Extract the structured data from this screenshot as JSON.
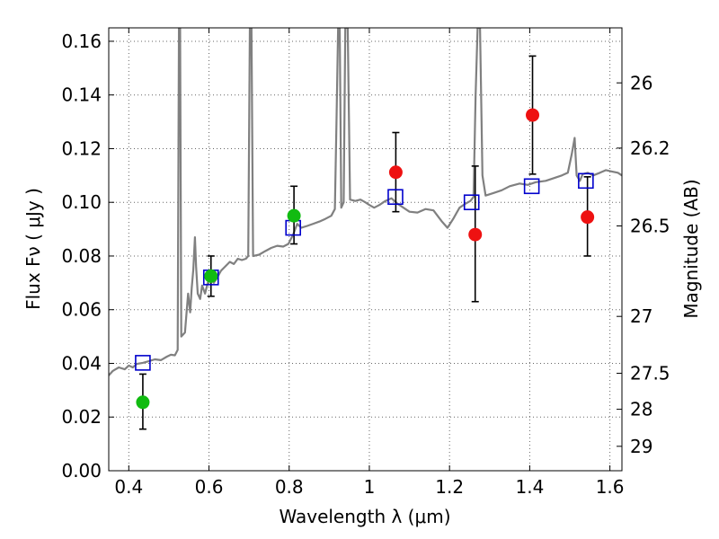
{
  "chart_data": {
    "type": "scatter",
    "xlabel": "Wavelength  λ (μm)",
    "ylabel": "Flux  Fν  ( μJy )",
    "ylabel_right": "Magnitude (AB)",
    "xlim": [
      0.35,
      1.63
    ],
    "ylim": [
      0.0,
      0.165
    ],
    "grid": true,
    "x_ticks": [
      {
        "value": 0.4,
        "label": "0.4"
      },
      {
        "value": 0.6,
        "label": "0.6"
      },
      {
        "value": 0.8,
        "label": "0.8"
      },
      {
        "value": 1.0,
        "label": "1"
      },
      {
        "value": 1.2,
        "label": "1.2"
      },
      {
        "value": 1.4,
        "label": "1.4"
      },
      {
        "value": 1.6,
        "label": "1.6"
      }
    ],
    "y_ticks": [
      {
        "value": 0.0,
        "label": "0.00"
      },
      {
        "value": 0.02,
        "label": "0.02"
      },
      {
        "value": 0.04,
        "label": "0.04"
      },
      {
        "value": 0.06,
        "label": "0.06"
      },
      {
        "value": 0.08,
        "label": "0.08"
      },
      {
        "value": 0.1,
        "label": "0.10"
      },
      {
        "value": 0.12,
        "label": "0.12"
      },
      {
        "value": 0.14,
        "label": "0.14"
      },
      {
        "value": 0.16,
        "label": "0.16"
      }
    ],
    "right_ticks": [
      {
        "label": "26",
        "flux": 0.1445
      },
      {
        "label": "26.2",
        "flux": 0.1202
      },
      {
        "label": "26.5",
        "flux": 0.0912
      },
      {
        "label": "27",
        "flux": 0.0575
      },
      {
        "label": "27.5",
        "flux": 0.0363
      },
      {
        "label": "28",
        "flux": 0.0229
      },
      {
        "label": "29",
        "flux": 0.0091
      }
    ],
    "colors": {
      "model": "#808080",
      "green": "#11bb11",
      "red": "#ee1111",
      "model_box": "#0000cc",
      "errorbar": "#000000",
      "grid": "#666666"
    },
    "series": [
      {
        "kind": "model_spectrum",
        "style": "line",
        "color": "#808080",
        "points": [
          [
            0.35,
            0.0355
          ],
          [
            0.36,
            0.0372
          ],
          [
            0.375,
            0.0385
          ],
          [
            0.39,
            0.0378
          ],
          [
            0.4,
            0.0392
          ],
          [
            0.41,
            0.0385
          ],
          [
            0.42,
            0.0398
          ],
          [
            0.435,
            0.0402
          ],
          [
            0.45,
            0.0408
          ],
          [
            0.465,
            0.0415
          ],
          [
            0.48,
            0.0412
          ],
          [
            0.495,
            0.0425
          ],
          [
            0.505,
            0.0432
          ],
          [
            0.515,
            0.043
          ],
          [
            0.522,
            0.045
          ],
          [
            0.525,
            0.165
          ],
          [
            0.528,
            0.165
          ],
          [
            0.531,
            0.05
          ],
          [
            0.54,
            0.0515
          ],
          [
            0.548,
            0.066
          ],
          [
            0.553,
            0.059
          ],
          [
            0.557,
            0.068
          ],
          [
            0.561,
            0.075
          ],
          [
            0.565,
            0.087
          ],
          [
            0.568,
            0.076
          ],
          [
            0.572,
            0.066
          ],
          [
            0.578,
            0.064
          ],
          [
            0.583,
            0.069
          ],
          [
            0.59,
            0.066
          ],
          [
            0.597,
            0.07
          ],
          [
            0.605,
            0.0715
          ],
          [
            0.612,
            0.07
          ],
          [
            0.62,
            0.0718
          ],
          [
            0.63,
            0.0745
          ],
          [
            0.64,
            0.076
          ],
          [
            0.652,
            0.0778
          ],
          [
            0.662,
            0.077
          ],
          [
            0.672,
            0.079
          ],
          [
            0.682,
            0.0785
          ],
          [
            0.692,
            0.079
          ],
          [
            0.698,
            0.08
          ],
          [
            0.702,
            0.165
          ],
          [
            0.706,
            0.165
          ],
          [
            0.71,
            0.08
          ],
          [
            0.725,
            0.0805
          ],
          [
            0.74,
            0.0818
          ],
          [
            0.755,
            0.083
          ],
          [
            0.77,
            0.0838
          ],
          [
            0.785,
            0.0835
          ],
          [
            0.798,
            0.0845
          ],
          [
            0.81,
            0.088
          ],
          [
            0.82,
            0.092
          ],
          [
            0.83,
            0.0905
          ],
          [
            0.845,
            0.0912
          ],
          [
            0.86,
            0.092
          ],
          [
            0.875,
            0.0928
          ],
          [
            0.89,
            0.0938
          ],
          [
            0.905,
            0.095
          ],
          [
            0.914,
            0.0975
          ],
          [
            0.918,
            0.13
          ],
          [
            0.922,
            0.165
          ],
          [
            0.926,
            0.165
          ],
          [
            0.93,
            0.098
          ],
          [
            0.936,
            0.1
          ],
          [
            0.94,
            0.165
          ],
          [
            0.946,
            0.165
          ],
          [
            0.952,
            0.101
          ],
          [
            0.965,
            0.1005
          ],
          [
            0.978,
            0.101
          ],
          [
            0.99,
            0.1
          ],
          [
            1.0,
            0.099
          ],
          [
            1.012,
            0.098
          ],
          [
            1.025,
            0.099
          ],
          [
            1.04,
            0.1005
          ],
          [
            1.055,
            0.1015
          ],
          [
            1.07,
            0.0995
          ],
          [
            1.085,
            0.098
          ],
          [
            1.1,
            0.0965
          ],
          [
            1.12,
            0.0962
          ],
          [
            1.14,
            0.0975
          ],
          [
            1.16,
            0.097
          ],
          [
            1.18,
            0.093
          ],
          [
            1.195,
            0.0905
          ],
          [
            1.21,
            0.094
          ],
          [
            1.225,
            0.098
          ],
          [
            1.24,
            0.0995
          ],
          [
            1.252,
            0.1005
          ],
          [
            1.26,
            0.102
          ],
          [
            1.265,
            0.14
          ],
          [
            1.27,
            0.165
          ],
          [
            1.276,
            0.165
          ],
          [
            1.282,
            0.11
          ],
          [
            1.29,
            0.1025
          ],
          [
            1.31,
            0.1035
          ],
          [
            1.33,
            0.1045
          ],
          [
            1.35,
            0.106
          ],
          [
            1.375,
            0.107
          ],
          [
            1.395,
            0.1065
          ],
          [
            1.415,
            0.1075
          ],
          [
            1.44,
            0.108
          ],
          [
            1.46,
            0.109
          ],
          [
            1.48,
            0.11
          ],
          [
            1.495,
            0.111
          ],
          [
            1.505,
            0.118
          ],
          [
            1.512,
            0.124
          ],
          [
            1.517,
            0.11
          ],
          [
            1.525,
            0.108
          ],
          [
            1.532,
            0.1105
          ],
          [
            1.545,
            0.111
          ],
          [
            1.558,
            0.11
          ],
          [
            1.575,
            0.111
          ],
          [
            1.59,
            0.112
          ],
          [
            1.605,
            0.1115
          ],
          [
            1.62,
            0.111
          ],
          [
            1.63,
            0.11
          ]
        ]
      },
      {
        "kind": "model_photometry",
        "style": "open_square",
        "color": "#0000cc",
        "points": [
          [
            0.435,
            0.0402
          ],
          [
            0.605,
            0.072
          ],
          [
            0.81,
            0.0905
          ],
          [
            1.065,
            0.102
          ],
          [
            1.255,
            0.1
          ],
          [
            1.405,
            0.106
          ],
          [
            1.54,
            0.108
          ]
        ]
      },
      {
        "kind": "observed_green",
        "style": "filled_circle",
        "color": "#11bb11",
        "points": [
          {
            "x": 0.435,
            "y": 0.0255,
            "err_low": 0.0155,
            "err_high": 0.036
          },
          {
            "x": 0.605,
            "y": 0.0725,
            "err_low": 0.065,
            "err_high": 0.08
          },
          {
            "x": 0.812,
            "y": 0.095,
            "err_low": 0.0845,
            "err_high": 0.106
          }
        ]
      },
      {
        "kind": "observed_red",
        "style": "filled_circle",
        "color": "#ee1111",
        "points": [
          {
            "x": 1.066,
            "y": 0.1112,
            "err_low": 0.0965,
            "err_high": 0.126
          },
          {
            "x": 1.264,
            "y": 0.088,
            "err_low": 0.063,
            "err_high": 0.1135
          },
          {
            "x": 1.407,
            "y": 0.1325,
            "err_low": 0.1105,
            "err_high": 0.1545
          },
          {
            "x": 1.544,
            "y": 0.0945,
            "err_low": 0.08,
            "err_high": 0.1095
          }
        ]
      }
    ]
  }
}
